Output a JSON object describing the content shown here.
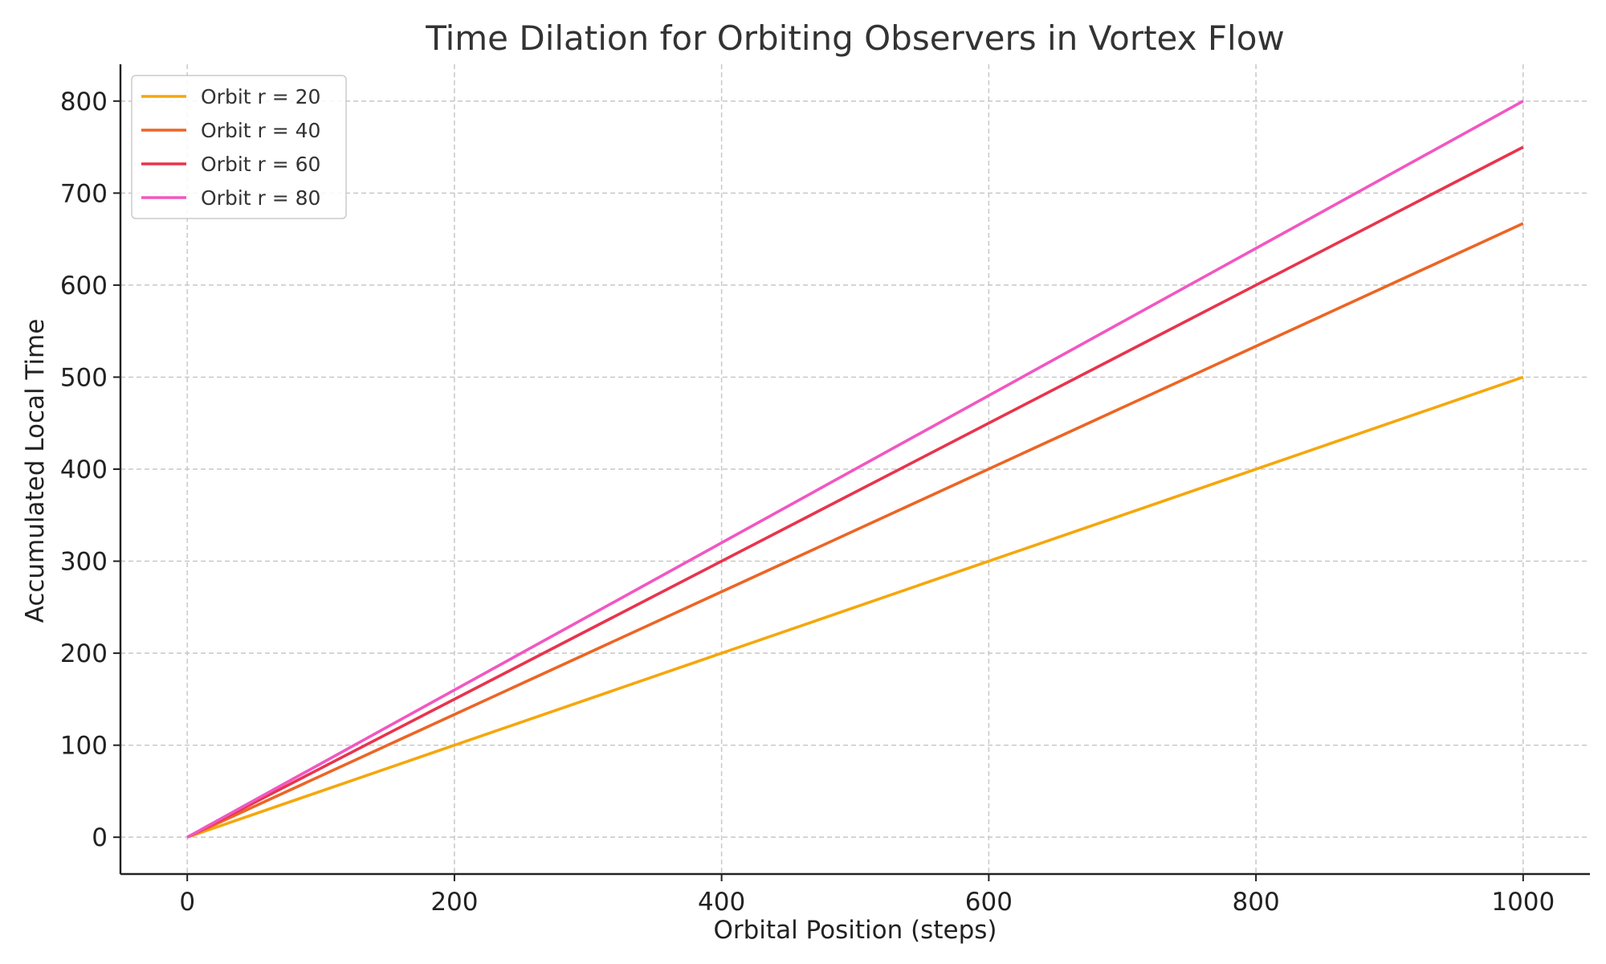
{
  "chart_data": {
    "type": "line",
    "title": "Time Dilation for Orbiting Observers in Vortex Flow",
    "xlabel": "Orbital Position (steps)",
    "ylabel": "Accumulated Local Time",
    "xlim": [
      -50,
      1050
    ],
    "ylim": [
      -40,
      840
    ],
    "xticks": [
      0,
      200,
      400,
      600,
      800,
      1000
    ],
    "yticks": [
      0,
      100,
      200,
      300,
      400,
      500,
      600,
      700,
      800
    ],
    "grid": true,
    "legend_position": "top-left",
    "series": [
      {
        "name": "Orbit r = 20",
        "color": "#f5a70c",
        "x": [
          0,
          1000
        ],
        "y": [
          0,
          500
        ]
      },
      {
        "name": "Orbit r = 40",
        "color": "#ec6524",
        "x": [
          0,
          1000
        ],
        "y": [
          0,
          667
        ]
      },
      {
        "name": "Orbit r = 60",
        "color": "#e8344d",
        "x": [
          0,
          1000
        ],
        "y": [
          0,
          750
        ]
      },
      {
        "name": "Orbit r = 80",
        "color": "#f157c1",
        "x": [
          0,
          1000
        ],
        "y": [
          0,
          800
        ]
      }
    ]
  }
}
